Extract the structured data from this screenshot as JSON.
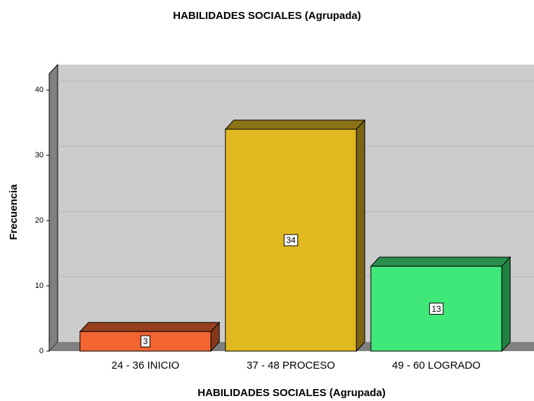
{
  "chart_data": {
    "type": "bar3d",
    "title": "HABILIDADES SOCIALES (Agrupada)",
    "x_label": "HABILIDADES SOCIALES (Agrupada)",
    "y_label": "Frecuencia",
    "categories": [
      "24 - 36 INICIO",
      "37 - 48 PROCESO",
      "49 - 60 LOGRADO"
    ],
    "values": [
      3,
      34,
      13
    ],
    "colors": [
      "#f26531",
      "#e0b820",
      "#40e87a"
    ],
    "ylim": [
      0,
      42.5
    ],
    "yticks": [
      0,
      10,
      20,
      30,
      40
    ],
    "grid": true
  }
}
